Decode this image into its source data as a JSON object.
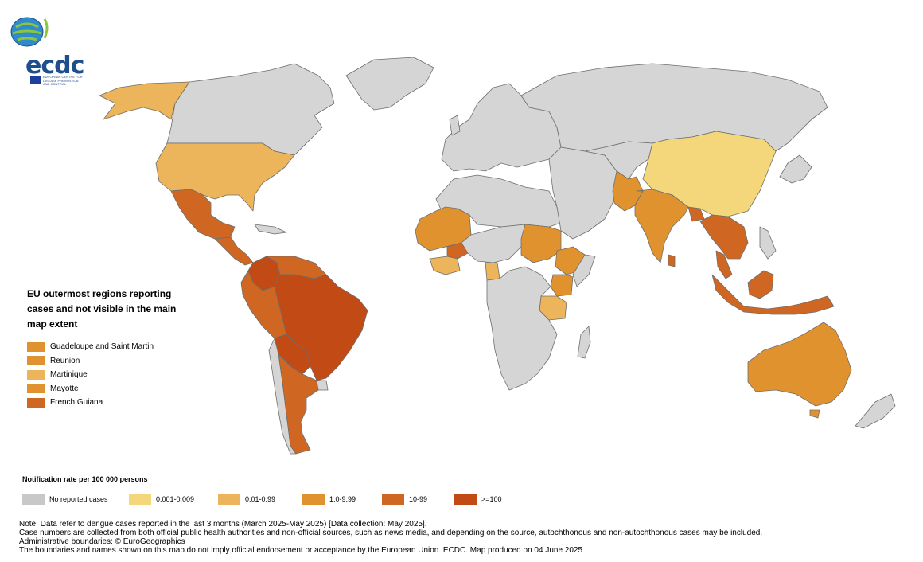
{
  "logo": {
    "name": "ecdc",
    "subtitle": "EUROPEAN CENTRE FOR DISEASE PREVENTION AND CONTROL",
    "color": "#1f4e8c"
  },
  "outermost": {
    "title": "EU outermost regions reporting cases and not visible in the main map extent",
    "items": [
      {
        "label": "Guadeloupe and Saint Martin",
        "color": "#e0922f"
      },
      {
        "label": "Reunion",
        "color": "#e0922f"
      },
      {
        "label": "Martinique",
        "color": "#ecb45b"
      },
      {
        "label": "Mayotte",
        "color": "#e0922f"
      },
      {
        "label": "French Guiana",
        "color": "#cf6722"
      }
    ]
  },
  "legend": {
    "title": "Notification rate per 100 000 persons",
    "items": [
      {
        "label": "No reported cases",
        "color": "#c8c8c8"
      },
      {
        "label": "0.001-0.009",
        "color": "#f3d77a"
      },
      {
        "label": "0.01-0.99",
        "color": "#ecb45b"
      },
      {
        "label": "1.0-9.99",
        "color": "#e0922f"
      },
      {
        "label": "10-99",
        "color": "#cf6722"
      },
      {
        "label": ">=100",
        "color": "#c24a14"
      }
    ]
  },
  "notes": [
    "Note: Data refer to dengue cases reported in the last 3 months (March 2025-May 2025) [Data collection: May 2025].",
    "Case numbers are collected from both official public health authorities and non-official sources, such as news media, and depending on the source, autochthonous and non-autochthonous cases may be included.",
    "Administrative boundaries: © EuroGeographics",
    "The boundaries and names shown on this map do not imply official endorsement or acceptance by the European Union. ECDC. Map produced on 04 June 2025"
  ],
  "map": {
    "border_color": "#6e6e6e",
    "regions": [
      {
        "name": "Alaska",
        "class": "0.01-0.99"
      },
      {
        "name": "Canada",
        "class": "No reported cases"
      },
      {
        "name": "Greenland",
        "class": "No reported cases"
      },
      {
        "name": "United States",
        "class": "0.01-0.99"
      },
      {
        "name": "Mexico",
        "class": "10-99"
      },
      {
        "name": "Central America",
        "class": "10-99"
      },
      {
        "name": "Colombia",
        "class": ">=100"
      },
      {
        "name": "Venezuela",
        "class": "10-99"
      },
      {
        "name": "Peru",
        "class": "10-99"
      },
      {
        "name": "Brazil",
        "class": ">=100"
      },
      {
        "name": "Bolivia",
        "class": ">=100"
      },
      {
        "name": "Paraguay",
        "class": ">=100"
      },
      {
        "name": "Argentina",
        "class": "10-99"
      },
      {
        "name": "Chile",
        "class": "No reported cases"
      },
      {
        "name": "Europe",
        "class": "No reported cases"
      },
      {
        "name": "Russia",
        "class": "No reported cases"
      },
      {
        "name": "North Africa",
        "class": "No reported cases"
      },
      {
        "name": "Mali",
        "class": "1.0-9.99"
      },
      {
        "name": "Burkina Faso",
        "class": "10-99"
      },
      {
        "name": "Sudan",
        "class": "1.0-9.99"
      },
      {
        "name": "Ethiopia",
        "class": "1.0-9.99"
      },
      {
        "name": "Kenya",
        "class": "1.0-9.99"
      },
      {
        "name": "Tanzania",
        "class": "0.01-0.99"
      },
      {
        "name": "Southern Africa",
        "class": "No reported cases"
      },
      {
        "name": "Madagascar",
        "class": "No reported cases"
      },
      {
        "name": "Middle East",
        "class": "No reported cases"
      },
      {
        "name": "Pakistan",
        "class": "1.0-9.99"
      },
      {
        "name": "India",
        "class": "1.0-9.99"
      },
      {
        "name": "Sri Lanka",
        "class": "10-99"
      },
      {
        "name": "Bangladesh",
        "class": "10-99"
      },
      {
        "name": "China",
        "class": "0.001-0.009"
      },
      {
        "name": "Mongolia",
        "class": "No reported cases"
      },
      {
        "name": "Southeast Asia",
        "class": "10-99"
      },
      {
        "name": "Malaysia",
        "class": "10-99"
      },
      {
        "name": "Indonesia",
        "class": "10-99"
      },
      {
        "name": "Philippines",
        "class": "No reported cases"
      },
      {
        "name": "Japan",
        "class": "No reported cases"
      },
      {
        "name": "Australia",
        "class": "1.0-9.99"
      },
      {
        "name": "New Zealand",
        "class": "No reported cases"
      }
    ]
  }
}
